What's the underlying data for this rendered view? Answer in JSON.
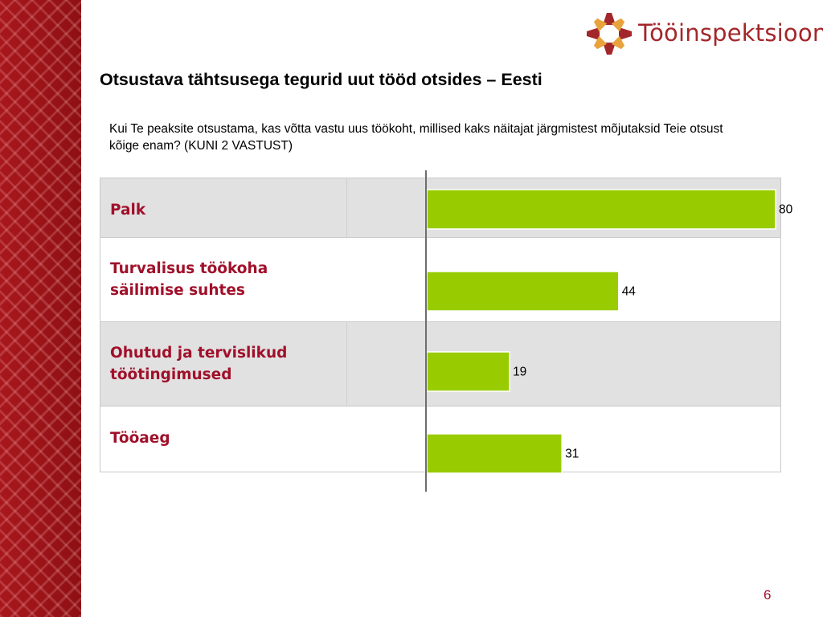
{
  "brand": {
    "logo_text": "Tööinspektsioon",
    "color_primary": "#a3272a",
    "color_accent": "#e8a33c"
  },
  "slide": {
    "title": "Otsustava tähtsusega tegurid uut tööd otsides – Eesti",
    "subtitle": "Kui Te peaksite otsustama, kas võtta vastu uus töökoht, millised kaks näitajat järgmistest mõjutaksid Teie otsust kõige enam? (KUNI 2 VASTUST)",
    "page_number": "6"
  },
  "chart_data": {
    "type": "bar",
    "orientation": "horizontal",
    "categories": [
      "Palk",
      "Turvalisus töökoha säilimise suhtes",
      "Ohutud ja tervislikud töötingimused",
      "Tööaeg"
    ],
    "values": [
      80,
      44,
      19,
      31
    ],
    "xlim": [
      0,
      80
    ],
    "bar_color": "#99cc00",
    "label_color": "#a0102a",
    "grid": false,
    "legend": "none"
  }
}
